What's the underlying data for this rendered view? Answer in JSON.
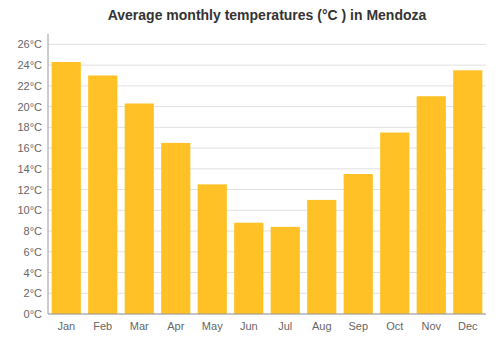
{
  "chart_data": {
    "type": "bar",
    "title": "Average monthly temperatures (°C ) in Mendoza",
    "categories": [
      "Jan",
      "Feb",
      "Mar",
      "Apr",
      "May",
      "Jun",
      "Jul",
      "Aug",
      "Sep",
      "Oct",
      "Nov",
      "Dec"
    ],
    "values": [
      24.3,
      23.0,
      20.3,
      16.5,
      12.5,
      8.8,
      8.4,
      11.0,
      13.5,
      17.5,
      21.0,
      23.5
    ],
    "color": "#FFC125",
    "ylim": [
      0,
      27
    ],
    "yticks": [
      {
        "value": 0,
        "label": "0°C"
      },
      {
        "value": 2,
        "label": "2°C"
      },
      {
        "value": 4,
        "label": "4°C"
      },
      {
        "value": 6,
        "label": "6°C"
      },
      {
        "value": 8,
        "label": "8°C"
      },
      {
        "value": 10,
        "label": "10°C"
      },
      {
        "value": 12,
        "label": "12°C"
      },
      {
        "value": 14,
        "label": "14°C"
      },
      {
        "value": 16,
        "label": "16°C"
      },
      {
        "value": 18,
        "label": "18°C"
      },
      {
        "value": 20,
        "label": "20°C"
      },
      {
        "value": 22,
        "label": "22°C"
      },
      {
        "value": 24,
        "label": "24°C"
      },
      {
        "value": 26,
        "label": "26°C"
      }
    ],
    "grid": true
  }
}
